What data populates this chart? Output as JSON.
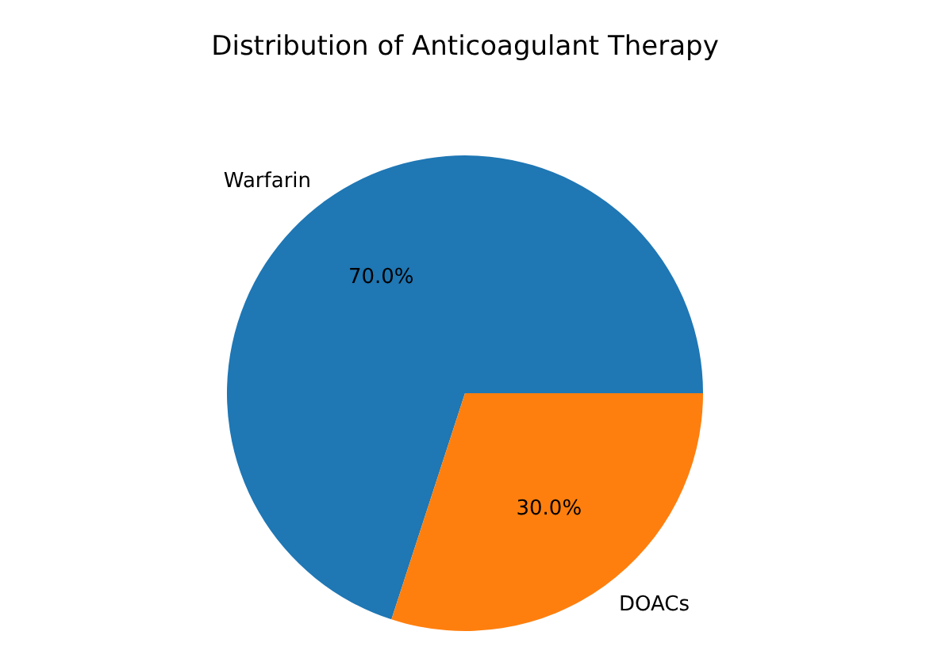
{
  "chart_data": {
    "type": "pie",
    "title": "Distribution of Anticoagulant Therapy",
    "categories": [
      "Warfarin",
      "DOACs"
    ],
    "values": [
      70,
      30
    ],
    "colors": [
      "#1f77b4",
      "#ff7f0e"
    ],
    "value_labels": [
      "70.0%",
      "30.0%"
    ],
    "legend": false
  }
}
